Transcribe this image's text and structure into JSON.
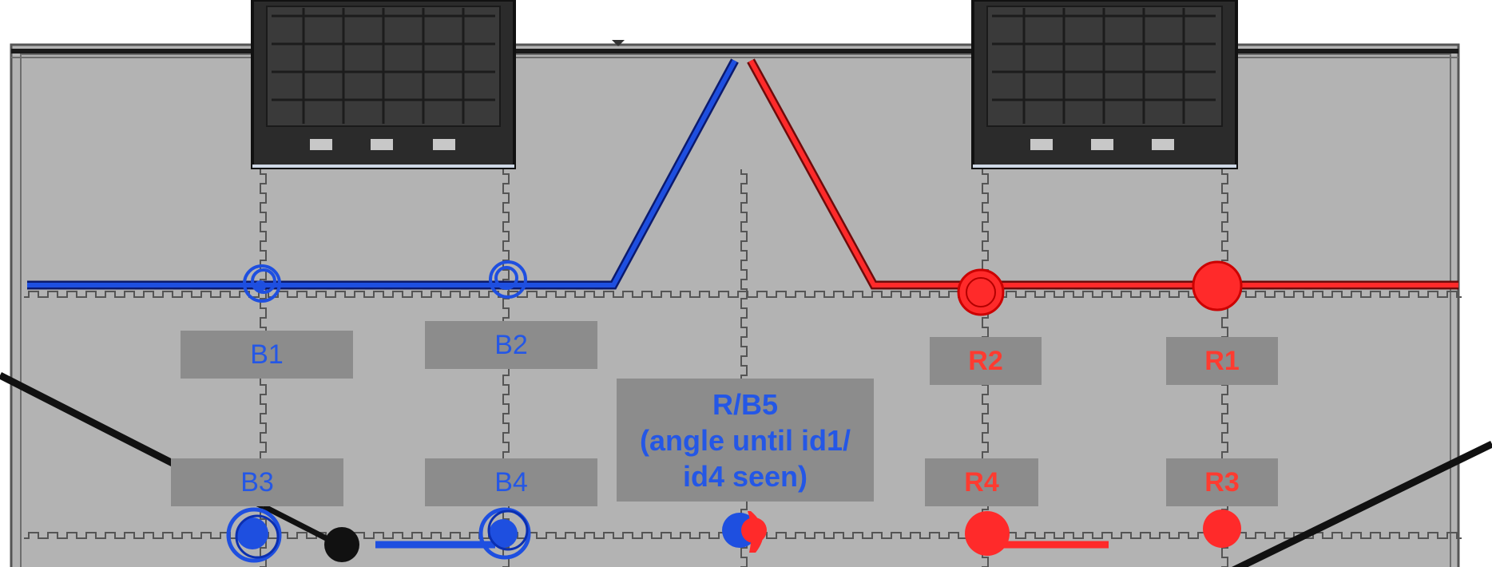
{
  "labels": {
    "b1": "B1",
    "b2": "B2",
    "b3": "B3",
    "b4": "B4",
    "r1": "R1",
    "r2": "R2",
    "r3": "R3",
    "r4": "R4",
    "rb5_line1": "R/B5",
    "rb5_line2": "(angle until id1/",
    "rb5_line3": "id4 seen)"
  },
  "colors": {
    "field": "#b3b3b3",
    "blue": "#1e4fe0",
    "red": "#ff2a2a",
    "label_box": "#8c8c8c",
    "structure": "#2b2b2b"
  },
  "icons": [
    "blue-start-marker",
    "red-start-marker",
    "robot-station-structure",
    "field-divider-line"
  ]
}
